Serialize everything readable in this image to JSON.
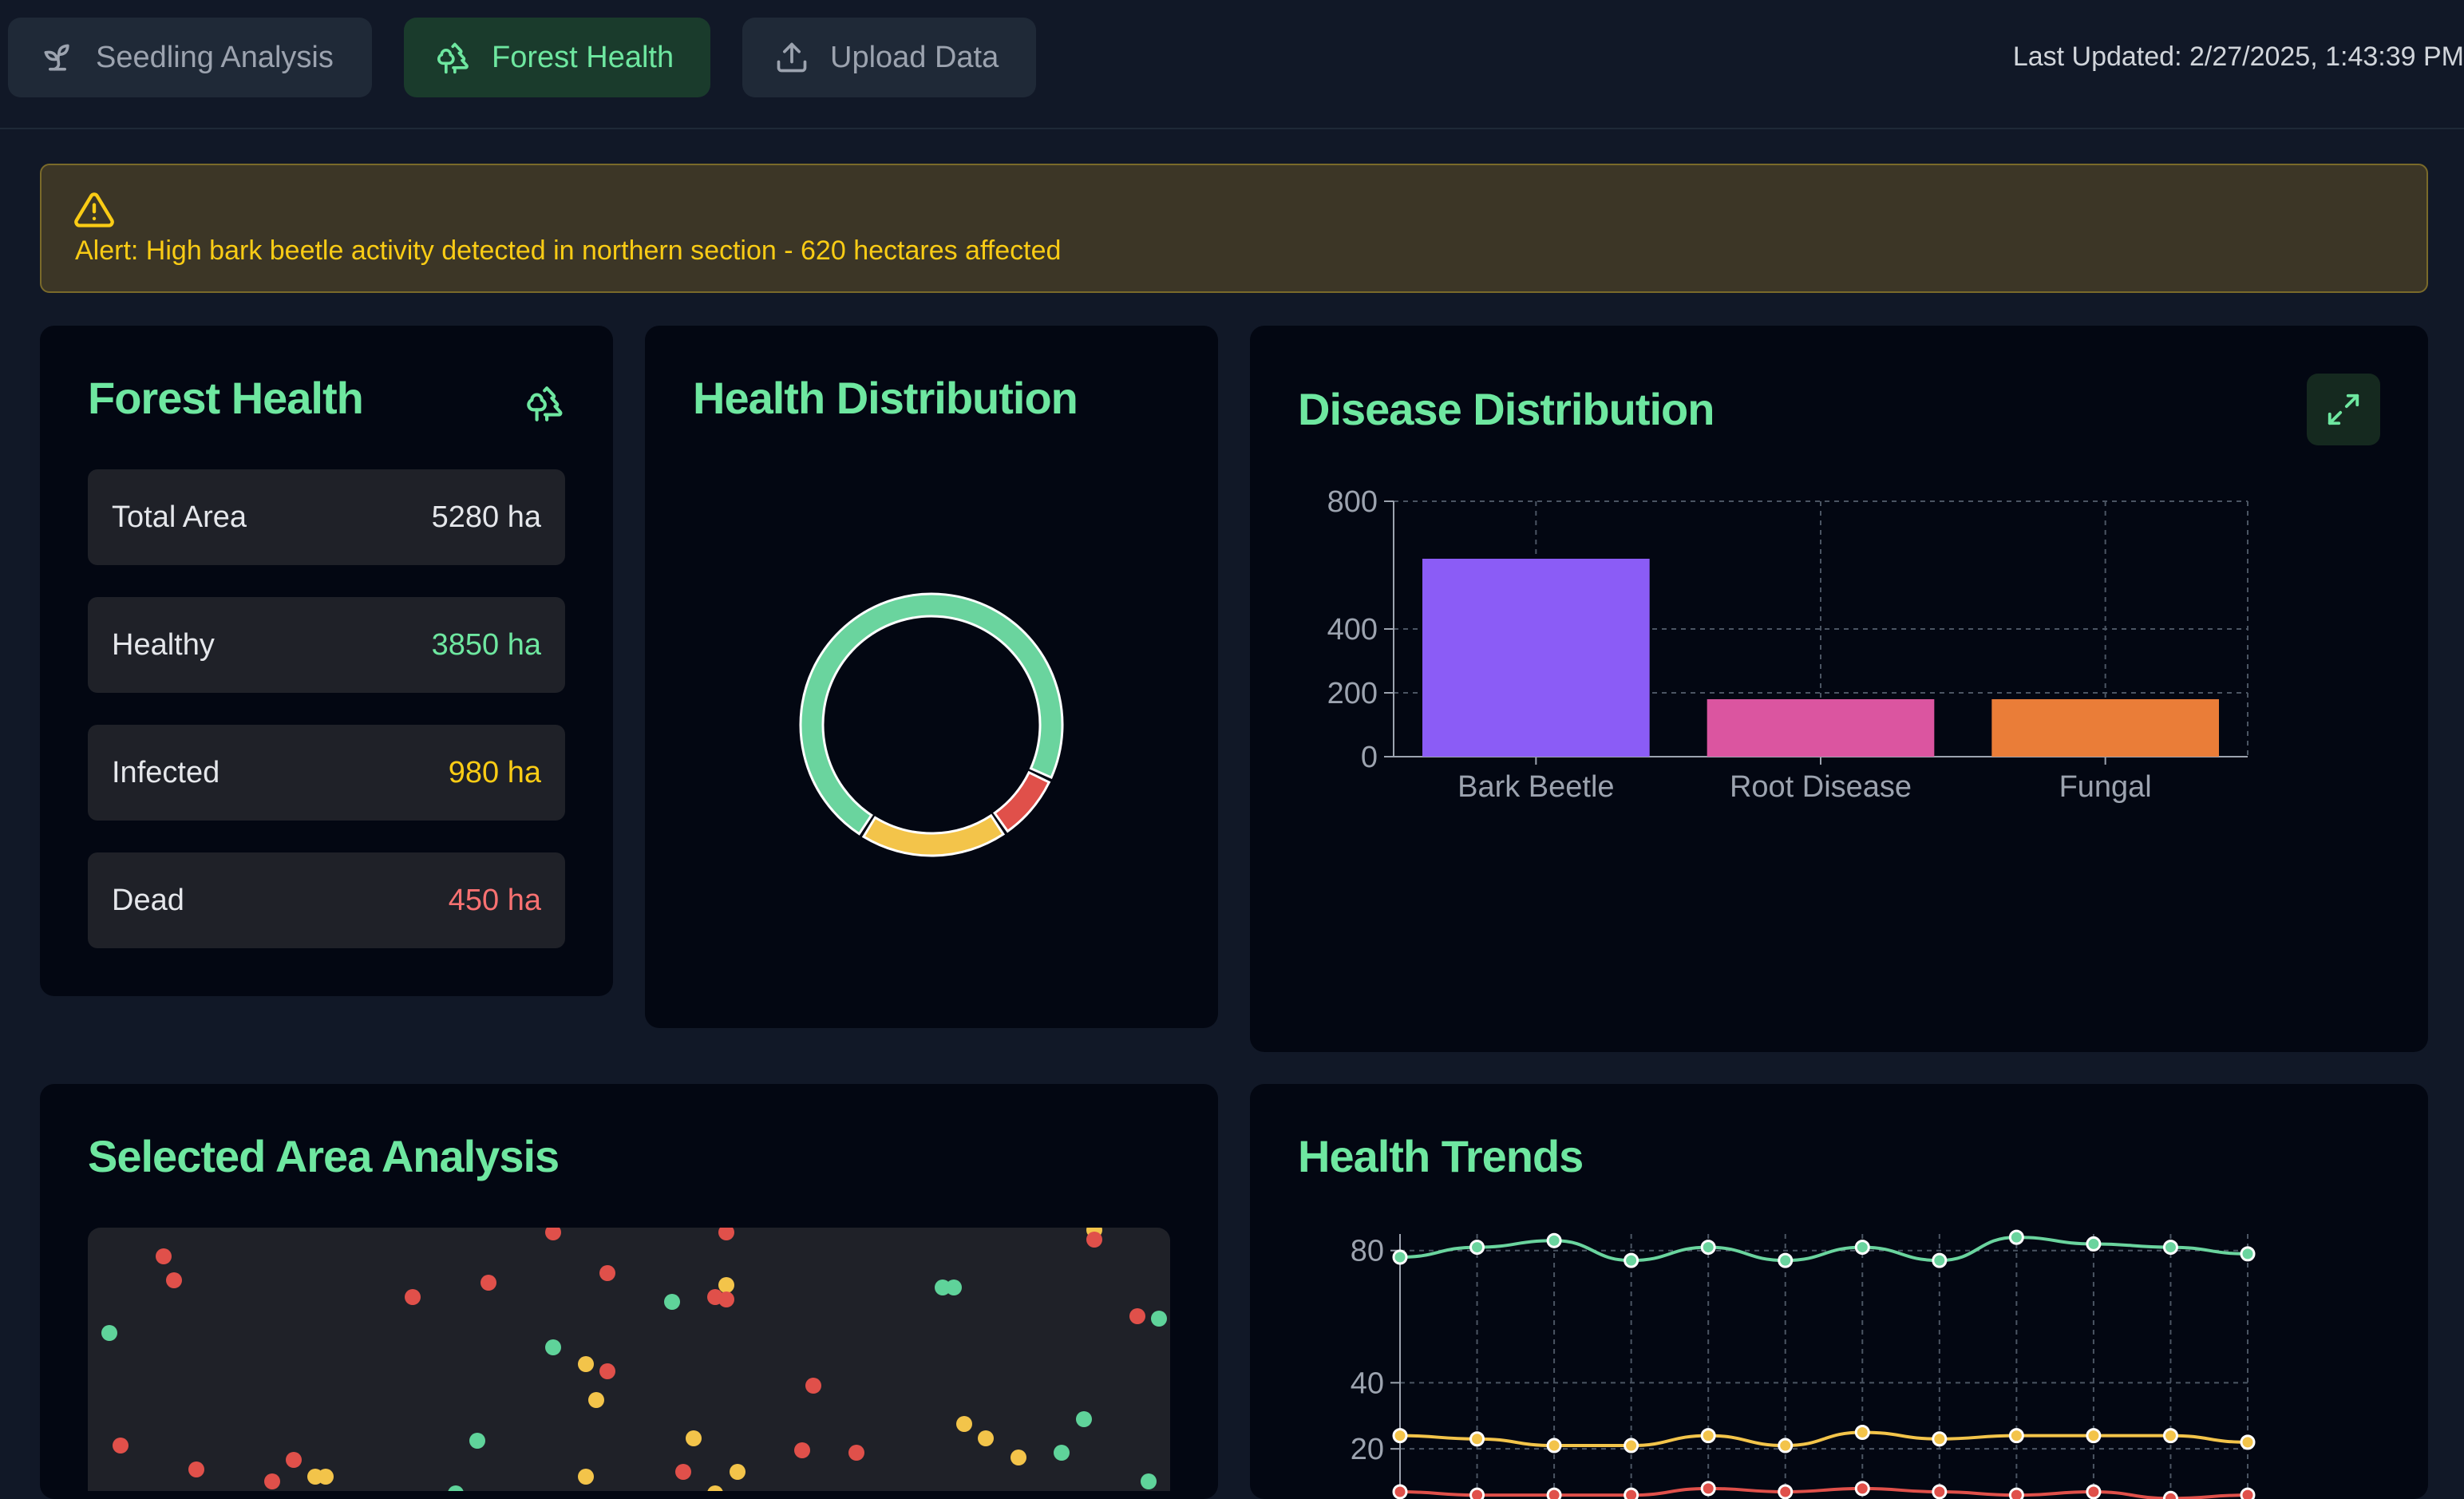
{
  "tabs": [
    {
      "label": "Seedling Analysis",
      "icon": "sprout-icon",
      "active": false
    },
    {
      "label": "Forest Health",
      "icon": "trees-icon",
      "active": true
    },
    {
      "label": "Upload Data",
      "icon": "upload-icon",
      "active": false
    }
  ],
  "last_updated": "Last Updated: 2/27/2025, 1:43:39 PM",
  "alert": {
    "text": "Alert: High bark beetle activity detected in northern section - 620 hectares affected",
    "icon": "alert-triangle-icon"
  },
  "forest_health": {
    "title": "Forest Health",
    "icon": "trees-icon",
    "stats": [
      {
        "label": "Total Area",
        "value": "5280 ha",
        "color": "#e5e7eb"
      },
      {
        "label": "Healthy",
        "value": "3850 ha",
        "color": "#6ee7a0"
      },
      {
        "label": "Infected",
        "value": "980 ha",
        "color": "#facc15"
      },
      {
        "label": "Dead",
        "value": "450 ha",
        "color": "#f87171"
      }
    ]
  },
  "health_distribution": {
    "title": "Health Distribution",
    "chart_data": {
      "type": "pie",
      "slices": [
        {
          "label": "Healthy",
          "value": 3850,
          "color": "#6ad49e"
        },
        {
          "label": "Dead",
          "value": 450,
          "color": "#e0504a"
        },
        {
          "label": "Infected",
          "value": 980,
          "color": "#f3c44a"
        }
      ]
    }
  },
  "disease_distribution": {
    "title": "Disease Distribution",
    "expand_icon": "expand-icon",
    "chart_data": {
      "type": "bar",
      "categories": [
        "Bark Beetle",
        "Root Disease",
        "Fungal"
      ],
      "values": [
        620,
        180,
        180
      ],
      "colors": [
        "#8b5cf6",
        "#db55a0",
        "#ea7d38"
      ],
      "yticks": [
        0,
        200,
        400,
        800
      ],
      "ylim": [
        0,
        800
      ]
    }
  },
  "selected_area": {
    "title": "Selected Area Analysis",
    "points": [
      {
        "x": 0.02,
        "y": 0.44,
        "c": "#5fd39a"
      },
      {
        "x": 0.07,
        "y": 0.12,
        "c": "#e0504a"
      },
      {
        "x": 0.08,
        "y": 0.22,
        "c": "#e0504a"
      },
      {
        "x": 0.03,
        "y": 0.91,
        "c": "#e0504a"
      },
      {
        "x": 0.1,
        "y": 1.01,
        "c": "#e0504a"
      },
      {
        "x": 0.19,
        "y": 0.97,
        "c": "#e0504a"
      },
      {
        "x": 0.21,
        "y": 1.04,
        "c": "#f3c44a"
      },
      {
        "x": 0.22,
        "y": 1.04,
        "c": "#f3c44a"
      },
      {
        "x": 0.17,
        "y": 1.06,
        "c": "#e0504a"
      },
      {
        "x": 0.3,
        "y": 0.29,
        "c": "#e0504a"
      },
      {
        "x": 0.37,
        "y": 0.23,
        "c": "#e0504a"
      },
      {
        "x": 0.43,
        "y": 0.02,
        "c": "#e0504a"
      },
      {
        "x": 0.48,
        "y": 0.19,
        "c": "#e0504a"
      },
      {
        "x": 0.43,
        "y": 0.5,
        "c": "#5fd39a"
      },
      {
        "x": 0.46,
        "y": 0.57,
        "c": "#f3c44a"
      },
      {
        "x": 0.48,
        "y": 0.6,
        "c": "#e0504a"
      },
      {
        "x": 0.47,
        "y": 0.72,
        "c": "#f3c44a"
      },
      {
        "x": 0.36,
        "y": 0.89,
        "c": "#5fd39a"
      },
      {
        "x": 0.34,
        "y": 1.11,
        "c": "#5fd39a"
      },
      {
        "x": 0.46,
        "y": 1.04,
        "c": "#f3c44a"
      },
      {
        "x": 0.54,
        "y": 0.31,
        "c": "#5fd39a"
      },
      {
        "x": 0.59,
        "y": 0.02,
        "c": "#e0504a"
      },
      {
        "x": 0.59,
        "y": 0.24,
        "c": "#f3c44a"
      },
      {
        "x": 0.59,
        "y": 0.3,
        "c": "#e0504a"
      },
      {
        "x": 0.58,
        "y": 0.29,
        "c": "#e0504a"
      },
      {
        "x": 0.56,
        "y": 0.88,
        "c": "#f3c44a"
      },
      {
        "x": 0.55,
        "y": 1.02,
        "c": "#e0504a"
      },
      {
        "x": 0.58,
        "y": 1.11,
        "c": "#f3c44a"
      },
      {
        "x": 0.6,
        "y": 1.02,
        "c": "#f3c44a"
      },
      {
        "x": 0.67,
        "y": 0.66,
        "c": "#e0504a"
      },
      {
        "x": 0.66,
        "y": 0.93,
        "c": "#e0504a"
      },
      {
        "x": 0.71,
        "y": 0.94,
        "c": "#e0504a"
      },
      {
        "x": 0.79,
        "y": 0.25,
        "c": "#5fd39a"
      },
      {
        "x": 0.8,
        "y": 0.25,
        "c": "#5fd39a"
      },
      {
        "x": 0.81,
        "y": 0.82,
        "c": "#f3c44a"
      },
      {
        "x": 0.83,
        "y": 0.88,
        "c": "#f3c44a"
      },
      {
        "x": 0.86,
        "y": 0.96,
        "c": "#f3c44a"
      },
      {
        "x": 0.9,
        "y": 0.94,
        "c": "#5fd39a"
      },
      {
        "x": 0.92,
        "y": 0.8,
        "c": "#5fd39a"
      },
      {
        "x": 0.93,
        "y": 0.01,
        "c": "#f3c44a"
      },
      {
        "x": 0.93,
        "y": 0.05,
        "c": "#e0504a"
      },
      {
        "x": 0.97,
        "y": 0.37,
        "c": "#e0504a"
      },
      {
        "x": 0.99,
        "y": 0.38,
        "c": "#5fd39a"
      },
      {
        "x": 0.98,
        "y": 1.06,
        "c": "#5fd39a"
      }
    ]
  },
  "health_trends": {
    "title": "Health Trends",
    "chart_data": {
      "type": "line",
      "x": [
        1,
        2,
        3,
        4,
        5,
        6,
        7,
        8,
        9,
        10,
        11,
        12
      ],
      "yticks": [
        20,
        40,
        80
      ],
      "ylim": [
        0,
        85
      ],
      "series": [
        {
          "values": [
            78,
            81,
            83,
            77,
            81,
            77,
            81,
            77,
            84,
            82,
            81,
            79
          ],
          "color": "#6ad49e"
        },
        {
          "values": [
            24,
            23,
            21,
            21,
            24,
            21,
            25,
            23,
            24,
            24,
            24,
            22
          ],
          "color": "#f3c44a"
        },
        {
          "values": [
            7,
            6,
            6,
            6,
            8,
            7,
            8,
            7,
            6,
            7,
            5,
            6
          ],
          "color": "#e0504a"
        }
      ]
    }
  }
}
